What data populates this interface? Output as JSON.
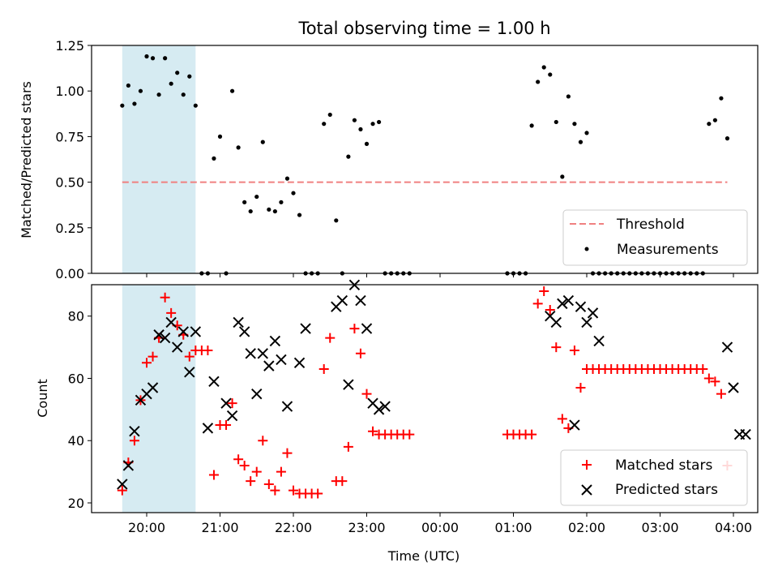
{
  "chart_data": [
    {
      "type": "scatter",
      "title": "Total observing time = 1.00 h",
      "ylabel": "Matched/Predicted stars",
      "xlabel": "",
      "ylim": [
        0,
        1.25
      ],
      "yticks": [
        0.0,
        0.25,
        0.5,
        0.75,
        1.0,
        1.25
      ],
      "yticklabels": [
        "0.00",
        "0.25",
        "0.50",
        "0.75",
        "1.00",
        "1.25"
      ],
      "shaded_region": [
        "19:40",
        "20:40"
      ],
      "threshold": 0.5,
      "legend": {
        "position": "lower-right",
        "entries": [
          "Threshold",
          "Measurements"
        ]
      },
      "series": [
        {
          "name": "Threshold",
          "style": "dashed-line",
          "color": "#f08080",
          "x": [
            "19:40",
            "03:55"
          ],
          "y": [
            0.5,
            0.5
          ]
        },
        {
          "name": "Measurements",
          "style": "dot",
          "color": "#000000",
          "x": [
            "19:40",
            "19:45",
            "19:50",
            "19:55",
            "20:00",
            "20:05",
            "20:10",
            "20:15",
            "20:20",
            "20:25",
            "20:30",
            "20:35",
            "20:40",
            "20:45",
            "20:50",
            "20:55",
            "21:00",
            "21:05",
            "21:10",
            "21:15",
            "21:20",
            "21:25",
            "21:30",
            "21:35",
            "21:40",
            "21:45",
            "21:50",
            "21:55",
            "22:00",
            "22:05",
            "22:10",
            "22:15",
            "22:20",
            "22:25",
            "22:30",
            "22:35",
            "22:40",
            "22:45",
            "22:50",
            "22:55",
            "23:00",
            "23:05",
            "23:10",
            "23:15",
            "23:20",
            "23:25",
            "23:30",
            "23:35",
            "00:55",
            "01:00",
            "01:05",
            "01:10",
            "01:15",
            "01:20",
            "01:25",
            "01:30",
            "01:35",
            "01:40",
            "01:45",
            "01:50",
            "01:55",
            "02:00",
            "02:05",
            "02:10",
            "02:15",
            "02:20",
            "02:25",
            "02:30",
            "02:35",
            "02:40",
            "02:45",
            "02:50",
            "02:55",
            "03:00",
            "03:05",
            "03:10",
            "03:15",
            "03:20",
            "03:25",
            "03:30",
            "03:35",
            "03:40",
            "03:45",
            "03:50",
            "03:55"
          ],
          "y": [
            0.92,
            1.03,
            0.93,
            1.0,
            1.19,
            1.18,
            0.98,
            1.18,
            1.04,
            1.1,
            0.98,
            1.08,
            0.92,
            0.0,
            0.0,
            0.63,
            0.75,
            0.0,
            1.0,
            0.69,
            0.39,
            0.34,
            0.42,
            0.72,
            0.35,
            0.34,
            0.39,
            0.52,
            0.44,
            0.32,
            0.0,
            0.0,
            0.0,
            0.82,
            0.87,
            0.29,
            0.0,
            0.64,
            0.84,
            0.79,
            0.71,
            0.82,
            0.83,
            0.0,
            0.0,
            0.0,
            0.0,
            0.0,
            0.0,
            0.0,
            0.0,
            0.0,
            0.81,
            1.05,
            1.13,
            1.09,
            0.83,
            0.53,
            0.97,
            0.82,
            0.72,
            0.77,
            0.0,
            0.0,
            0.0,
            0.0,
            0.0,
            0.0,
            0.0,
            0.0,
            0.0,
            0.0,
            0.0,
            0.0,
            0.0,
            0.0,
            0.0,
            0.0,
            0.0,
            0.0,
            0.0,
            0.82,
            0.84,
            0.96,
            0.74
          ]
        }
      ]
    },
    {
      "type": "scatter",
      "title": "",
      "ylabel": "Count",
      "xlabel": "Time (UTC)",
      "ylim": [
        17,
        90
      ],
      "yticks": [
        20,
        40,
        60,
        80
      ],
      "xticklabels": [
        "20:00",
        "21:00",
        "22:00",
        "23:00",
        "00:00",
        "01:00",
        "02:00",
        "03:00",
        "04:00"
      ],
      "shaded_region": [
        "19:40",
        "20:40"
      ],
      "legend": {
        "position": "lower-right",
        "entries": [
          "Matched stars",
          "Predicted stars"
        ]
      },
      "series": [
        {
          "name": "Matched stars",
          "marker": "+",
          "color": "#ff0000",
          "x": [
            "19:40",
            "19:45",
            "19:50",
            "19:55",
            "20:00",
            "20:05",
            "20:10",
            "20:15",
            "20:20",
            "20:25",
            "20:30",
            "20:35",
            "20:40",
            "20:45",
            "20:50",
            "20:55",
            "21:00",
            "21:05",
            "21:10",
            "21:15",
            "21:20",
            "21:25",
            "21:30",
            "21:35",
            "21:40",
            "21:45",
            "21:50",
            "21:55",
            "22:00",
            "22:05",
            "22:10",
            "22:15",
            "22:20",
            "22:25",
            "22:30",
            "22:35",
            "22:40",
            "22:45",
            "22:50",
            "22:55",
            "23:00",
            "23:05",
            "23:10",
            "23:15",
            "23:20",
            "23:25",
            "23:30",
            "23:35",
            "00:55",
            "01:00",
            "01:05",
            "01:10",
            "01:15",
            "01:20",
            "01:25",
            "01:30",
            "01:35",
            "01:40",
            "01:45",
            "01:50",
            "01:55",
            "02:00",
            "02:05",
            "02:10",
            "02:15",
            "02:20",
            "02:25",
            "02:30",
            "02:35",
            "02:40",
            "02:45",
            "02:50",
            "02:55",
            "03:00",
            "03:05",
            "03:10",
            "03:15",
            "03:20",
            "03:25",
            "03:30",
            "03:35",
            "03:40",
            "03:45",
            "03:50",
            "03:55"
          ],
          "y": [
            21,
            30,
            37,
            50,
            62,
            64,
            70,
            83,
            78,
            74,
            71,
            64,
            66,
            66,
            66,
            26,
            42,
            42,
            49,
            31,
            29,
            24,
            27,
            37,
            23,
            21,
            27,
            33,
            21,
            20,
            20,
            20,
            20,
            60,
            70,
            24,
            24,
            35,
            73,
            65,
            52,
            40,
            39,
            39,
            39,
            39,
            39,
            39,
            39,
            39,
            39,
            39,
            39,
            81,
            85,
            79,
            67,
            44,
            41,
            66,
            54,
            60,
            60,
            60,
            60,
            60,
            60,
            60,
            60,
            60,
            60,
            60,
            60,
            60,
            60,
            60,
            60,
            60,
            60,
            60,
            60,
            57,
            56,
            52,
            29
          ]
        },
        {
          "name": "Predicted stars",
          "marker": "x",
          "color": "#000000",
          "x": [
            "19:40",
            "19:45",
            "19:50",
            "19:55",
            "20:00",
            "20:05",
            "20:10",
            "20:15",
            "20:20",
            "20:25",
            "20:30",
            "20:35",
            "20:40",
            "20:50",
            "20:55",
            "21:05",
            "21:10",
            "21:15",
            "21:20",
            "21:25",
            "21:30",
            "21:35",
            "21:40",
            "21:45",
            "21:50",
            "21:55",
            "22:05",
            "22:10",
            "22:35",
            "22:40",
            "22:45",
            "22:50",
            "22:55",
            "23:00",
            "23:05",
            "23:10",
            "23:15",
            "01:30",
            "01:35",
            "01:40",
            "01:45",
            "01:50",
            "01:55",
            "02:00",
            "02:05",
            "02:10",
            "03:55",
            "04:00",
            "04:05",
            "04:10"
          ],
          "y": [
            23,
            29,
            40,
            50,
            52,
            54,
            71,
            70,
            75,
            67,
            72,
            59,
            72,
            41,
            56,
            49,
            45,
            75,
            72,
            65,
            52,
            65,
            61,
            69,
            63,
            48,
            62,
            73,
            80,
            82,
            55,
            87,
            82,
            73,
            49,
            47,
            48,
            77,
            75,
            81,
            82,
            42,
            80,
            75,
            78,
            69,
            67,
            54,
            39,
            39
          ]
        }
      ]
    }
  ]
}
